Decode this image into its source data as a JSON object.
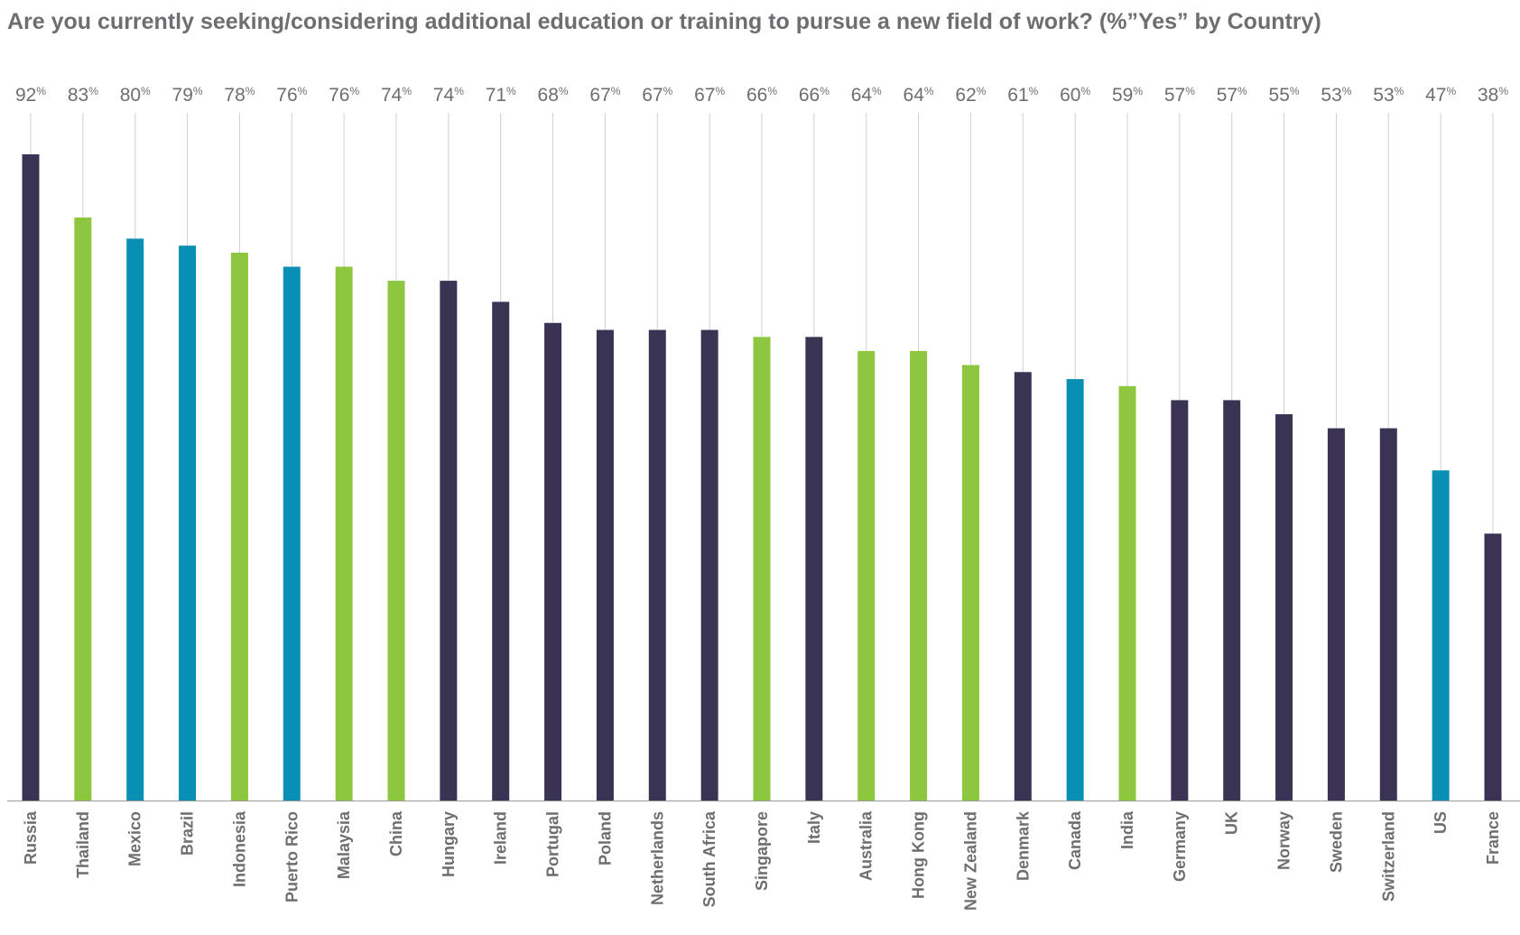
{
  "chart_data": {
    "type": "bar",
    "title": "Are you currently seeking/considering additional education or training to pursue a new field of work? (%”Yes” by Country)",
    "xlabel": "",
    "ylabel": "",
    "ylim": [
      0,
      100
    ],
    "value_suffix": "%",
    "grid": false,
    "legend": "none",
    "colors": {
      "dark": "#3b3353",
      "green": "#8dc63f",
      "teal": "#0a8fb4",
      "connector": "#cfcfcf",
      "axis": "#9a9a9a"
    },
    "categories": [
      "Russia",
      "Thailand",
      "Mexico",
      "Brazil",
      "Indonesia",
      "Puerto Rico",
      "Malaysia",
      "China",
      "Hungary",
      "Ireland",
      "Portugal",
      "Poland",
      "Netherlands",
      "South Africa",
      "Singapore",
      "Italy",
      "Australia",
      "Hong Kong",
      "New Zealand",
      "Denmark",
      "Canada",
      "India",
      "Germany",
      "UK",
      "Norway",
      "Sweden",
      "Switzerland",
      "US",
      "France"
    ],
    "values": [
      92,
      83,
      80,
      79,
      78,
      76,
      76,
      74,
      74,
      71,
      68,
      67,
      67,
      67,
      66,
      66,
      64,
      64,
      62,
      61,
      60,
      59,
      57,
      57,
      55,
      53,
      53,
      47,
      38
    ],
    "bar_colors": [
      "dark",
      "green",
      "teal",
      "teal",
      "green",
      "teal",
      "green",
      "green",
      "dark",
      "dark",
      "dark",
      "dark",
      "dark",
      "dark",
      "green",
      "dark",
      "green",
      "green",
      "green",
      "dark",
      "teal",
      "green",
      "dark",
      "dark",
      "dark",
      "dark",
      "dark",
      "teal",
      "dark"
    ]
  }
}
